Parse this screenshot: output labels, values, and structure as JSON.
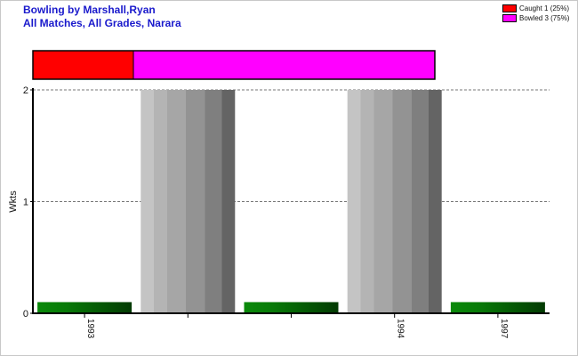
{
  "header": {
    "title": "Bowling by Marshall,Ryan",
    "subtitle": "All Matches, All Grades, Narara"
  },
  "legend": [
    {
      "label": "Caught 1 (25%)",
      "color": "#ff0000"
    },
    {
      "label": "Bowled 3 (75%)",
      "color": "#ff00ff"
    }
  ],
  "chart_data": {
    "type": "bar",
    "ylabel": "Wkts",
    "ylim": [
      0,
      2
    ],
    "yticks": [
      0,
      1,
      2
    ],
    "grid": true,
    "legend_position": "top-right",
    "categories": [
      "1993",
      "",
      "",
      "1994",
      "1997"
    ],
    "values": [
      0.1,
      2,
      0.1,
      2,
      0.1
    ],
    "bar_colors": [
      "green",
      "gray",
      "green",
      "gray",
      "green"
    ],
    "dismissal_breakdown": [
      {
        "name": "Caught",
        "value": 1,
        "color": "#ff0000"
      },
      {
        "name": "Bowled",
        "value": 3,
        "color": "#ff00ff"
      }
    ]
  }
}
